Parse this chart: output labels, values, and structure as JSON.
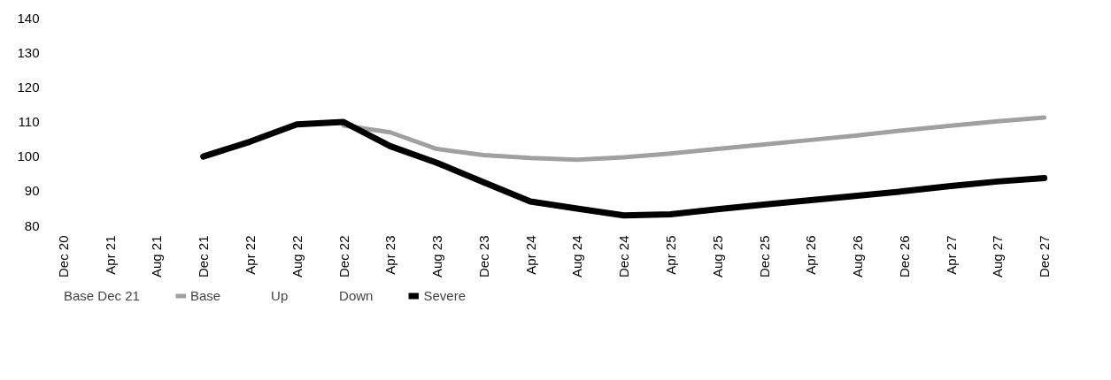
{
  "chart_data": {
    "type": "line",
    "categories": [
      "Dec 20",
      "Apr 21",
      "Aug 21",
      "Dec 21",
      "Apr 22",
      "Aug 22",
      "Dec 22",
      "Apr 23",
      "Aug 23",
      "Dec 23",
      "Apr 24",
      "Aug 24",
      "Dec 24",
      "Apr 25",
      "Aug 25",
      "Dec 25",
      "Apr 26",
      "Aug 26",
      "Dec 26",
      "Apr 27",
      "Aug 27",
      "Dec 27"
    ],
    "series": [
      {
        "name": "Base Dec 21",
        "values": [
          null,
          null,
          null,
          null,
          null,
          null,
          null,
          null,
          null,
          null,
          null,
          null,
          null,
          null,
          null,
          null,
          null,
          null,
          null,
          null,
          null,
          null
        ]
      },
      {
        "name": "Base",
        "color": "#a0a0a0",
        "values": [
          null,
          null,
          null,
          null,
          null,
          null,
          109,
          107,
          102.2,
          100.4,
          99.6,
          99.1,
          99.8,
          100.9,
          102.2,
          103.5,
          104.8,
          106.1,
          107.6,
          108.9,
          110.2,
          111.3
        ]
      },
      {
        "name": "Up",
        "values": [
          null,
          null,
          null,
          null,
          null,
          null,
          null,
          null,
          null,
          null,
          null,
          null,
          null,
          null,
          null,
          null,
          null,
          null,
          null,
          null,
          null,
          null
        ]
      },
      {
        "name": "Down",
        "values": [
          null,
          null,
          null,
          null,
          null,
          null,
          null,
          null,
          null,
          null,
          null,
          null,
          null,
          null,
          null,
          null,
          null,
          null,
          null,
          null,
          null,
          null
        ]
      },
      {
        "name": "Severe",
        "color": "#000000",
        "values": [
          null,
          null,
          null,
          100,
          104.3,
          109.3,
          110,
          103,
          98.2,
          92.6,
          87,
          85,
          83,
          83.3,
          84.8,
          86.1,
          87.4,
          88.7,
          90,
          91.5,
          92.8,
          93.8
        ]
      }
    ],
    "ylim": [
      80,
      140
    ],
    "yticks": [
      80,
      90,
      100,
      110,
      120,
      130,
      140
    ],
    "grid": false,
    "legend": "bottom",
    "marker": "none",
    "line_style": "solid"
  }
}
